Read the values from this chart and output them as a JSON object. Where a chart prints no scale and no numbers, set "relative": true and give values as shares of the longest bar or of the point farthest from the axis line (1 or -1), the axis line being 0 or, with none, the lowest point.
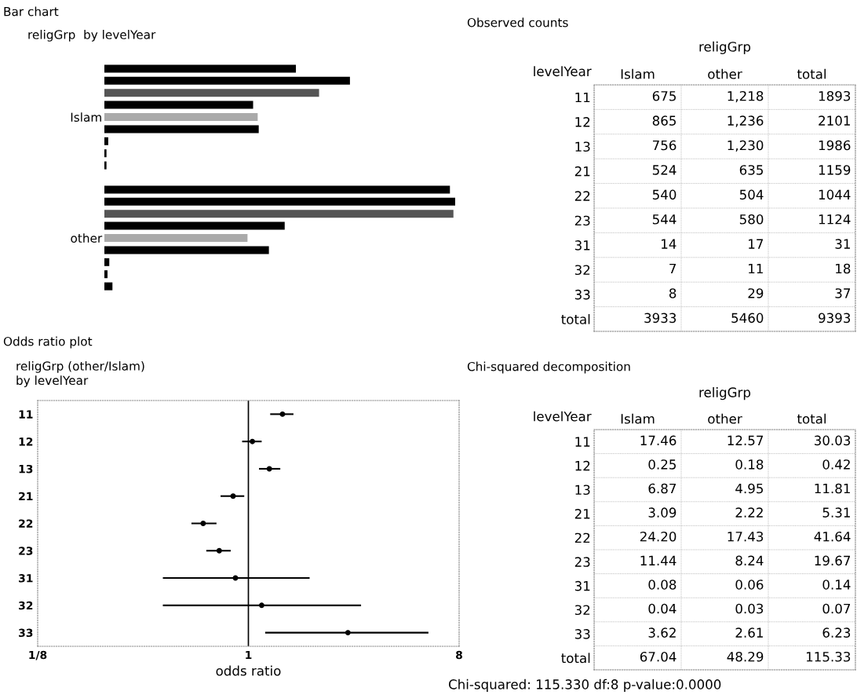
{
  "chart_data": [
    {
      "type": "bar",
      "title": "Bar chart",
      "subtitle": "religGrp  by levelYear",
      "orientation": "horizontal",
      "relative": true,
      "categories": [
        "Islam",
        "other"
      ],
      "series": [
        {
          "color": "#000000",
          "values": [
            0.546,
            0.985
          ]
        },
        {
          "color": "#000000",
          "values": [
            0.7,
            1
          ]
        },
        {
          "color": "#555555",
          "values": [
            0.612,
            0.995
          ]
        },
        {
          "color": "#000000",
          "values": [
            0.424,
            0.514
          ]
        },
        {
          "color": "#aaaaaa",
          "values": [
            0.437,
            0.408
          ]
        },
        {
          "color": "#000000",
          "values": [
            0.44,
            0.469
          ]
        },
        {
          "color": "#000000",
          "values": [
            0.011,
            0.014
          ]
        },
        {
          "color": "#000000",
          "values": [
            0.006,
            0.009
          ]
        },
        {
          "color": "#000000",
          "values": [
            0.006,
            0.023
          ]
        }
      ]
    },
    {
      "type": "scatter",
      "title": "Odds ratio plot",
      "subtitle": "religGrp (other/Islam)\nby levelYear",
      "orientation": "horizontal",
      "categories": [
        "11",
        "12",
        "13",
        "21",
        "22",
        "23",
        "31",
        "32",
        "33"
      ],
      "values": [
        1.4,
        1.04,
        1.23,
        0.86,
        0.64,
        0.75,
        0.88,
        1.14,
        2.67
      ],
      "errors": [
        [
          1.24,
          1.56
        ],
        [
          0.94,
          1.14
        ],
        [
          1.11,
          1.37
        ],
        [
          0.76,
          0.96
        ],
        [
          0.57,
          0.73
        ],
        [
          0.66,
          0.84
        ],
        [
          0.43,
          1.83
        ],
        [
          0.43,
          3.04
        ],
        [
          1.18,
          5.91
        ]
      ],
      "color": "#000000",
      "marker": "circle",
      "log": "x",
      "xlim": [
        0.125,
        8
      ],
      "xticks": [
        {
          "value": 0.125,
          "label": "1/8"
        },
        1,
        8
      ],
      "xlabel": "odds ratio",
      "ref_lines": [
        {
          "axis": "x",
          "value": 1,
          "color": "#000000"
        }
      ]
    },
    {
      "type": "other",
      "title": "Observed counts",
      "xlabel": "religGrp",
      "ylabel": "levelYear",
      "categories": [
        "Islam",
        "other",
        "total"
      ],
      "y_categories": [
        "11",
        "12",
        "13",
        "21",
        "22",
        "23",
        "31",
        "32",
        "33",
        "total"
      ],
      "cell_labels": [
        [
          "675",
          "1,218",
          "1893"
        ],
        [
          "865",
          "1,236",
          "2101"
        ],
        [
          "756",
          "1,230",
          "1986"
        ],
        [
          "524",
          "635",
          "1159"
        ],
        [
          "540",
          "504",
          "1044"
        ],
        [
          "544",
          "580",
          "1124"
        ],
        [
          "14",
          "17",
          "31"
        ],
        [
          "7",
          "11",
          "18"
        ],
        [
          "8",
          "29",
          "37"
        ],
        [
          "3933",
          "5460",
          "9393"
        ]
      ]
    },
    {
      "type": "other",
      "title": "Chi-squared decomposition",
      "xlabel": "religGrp",
      "ylabel": "levelYear",
      "categories": [
        "Islam",
        "other",
        "total"
      ],
      "y_categories": [
        "11",
        "12",
        "13",
        "21",
        "22",
        "23",
        "31",
        "32",
        "33",
        "total"
      ],
      "cell_labels": [
        [
          "17.46",
          "12.57",
          "30.03"
        ],
        [
          "0.25",
          "0.18",
          "0.42"
        ],
        [
          "6.87",
          "4.95",
          "11.81"
        ],
        [
          "3.09",
          "2.22",
          "5.31"
        ],
        [
          "24.20",
          "17.43",
          "41.64"
        ],
        [
          "11.44",
          "8.24",
          "19.67"
        ],
        [
          "0.08",
          "0.06",
          "0.14"
        ],
        [
          "0.04",
          "0.03",
          "0.07"
        ],
        [
          "3.62",
          "2.61",
          "6.23"
        ],
        [
          "67.04",
          "48.29",
          "115.33"
        ]
      ],
      "annotations": [
        "Chi-squared: 115.330 df:8 p-value:0.0000"
      ]
    }
  ]
}
